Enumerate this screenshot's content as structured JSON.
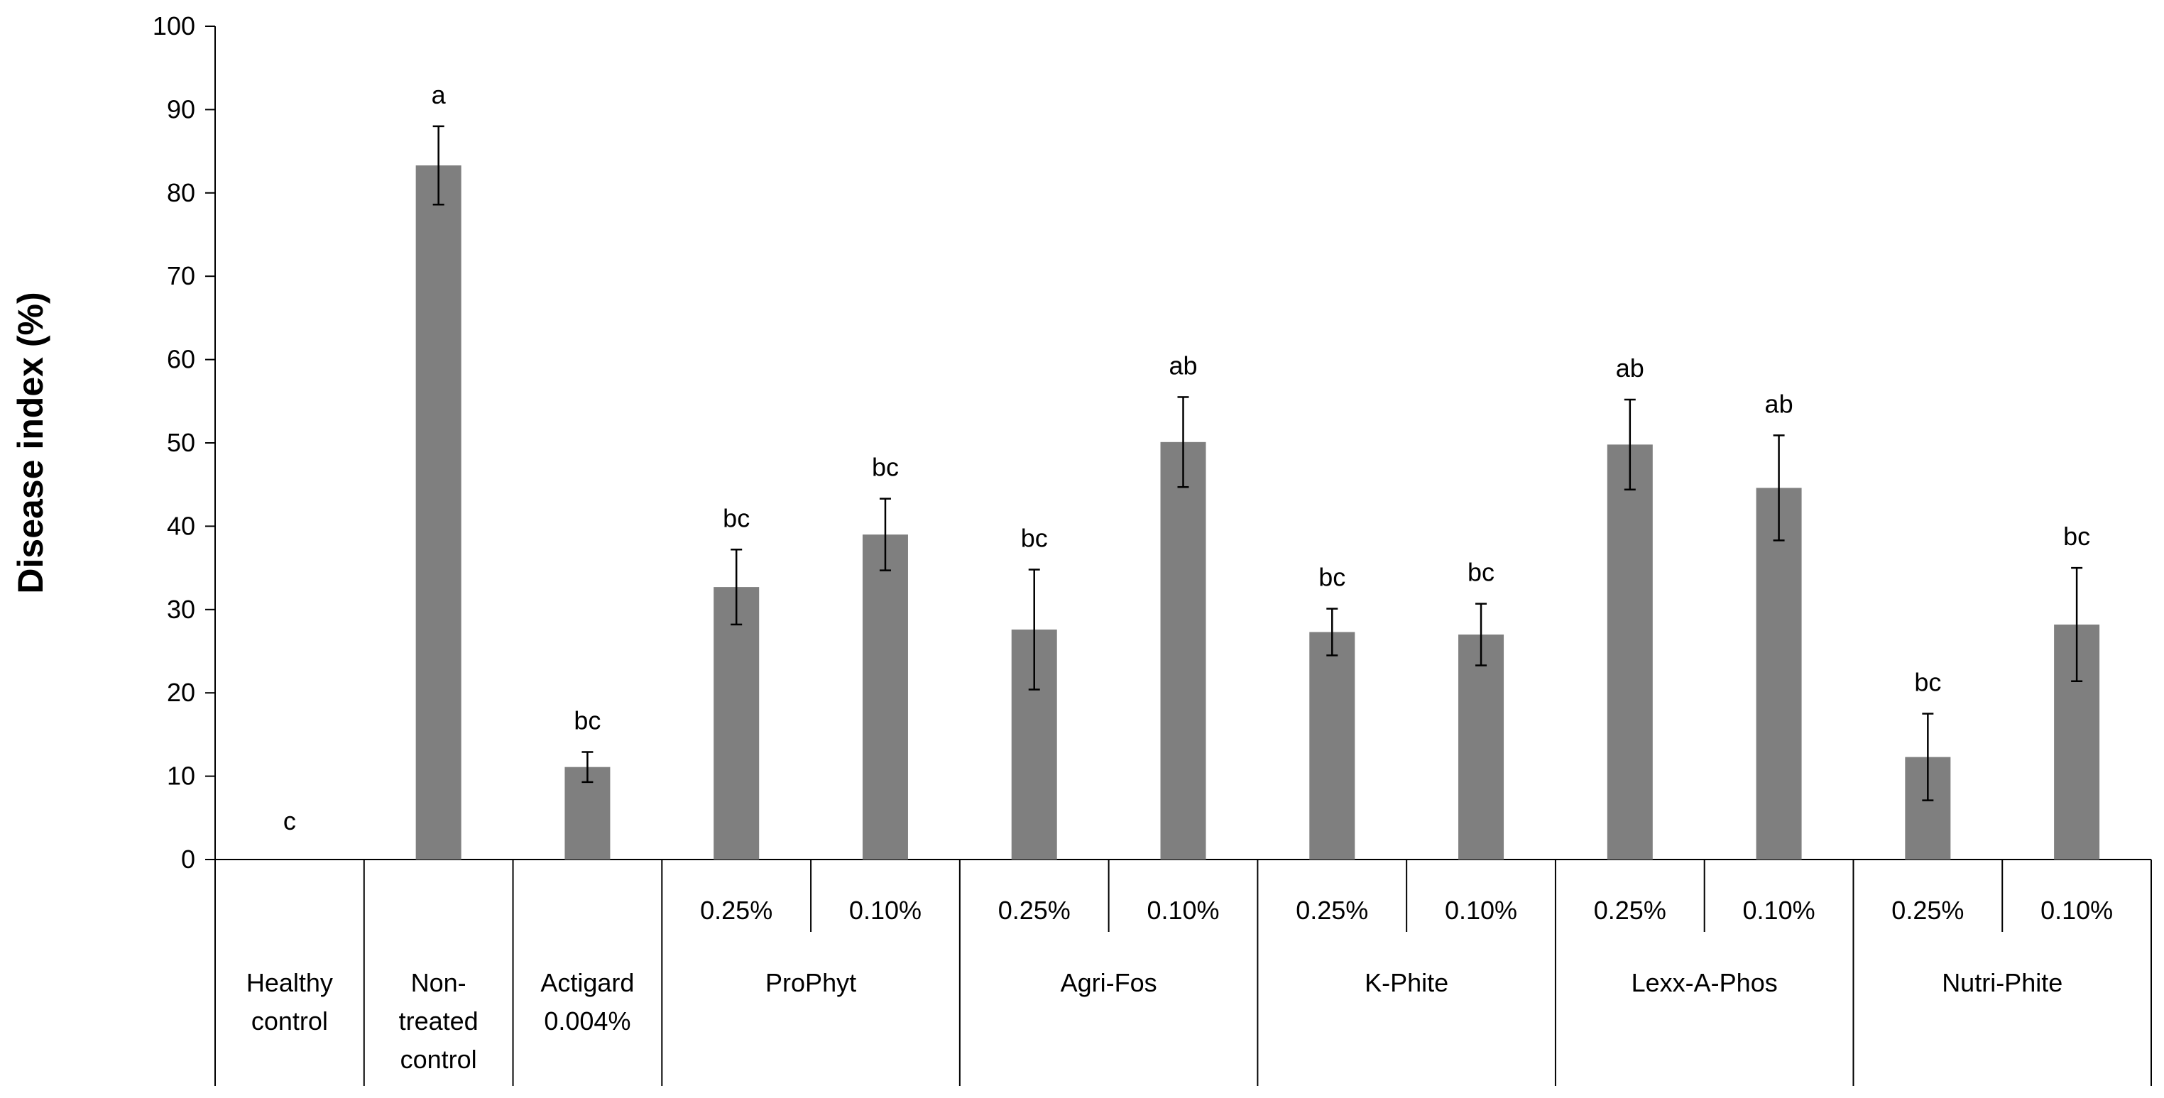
{
  "chart_data": {
    "type": "bar",
    "ylabel": "Disease index (%)",
    "ylim": [
      0,
      100
    ],
    "yticks": [
      "0",
      "10",
      "20",
      "30",
      "40",
      "50",
      "60",
      "70",
      "80",
      "90",
      "100"
    ],
    "bar_color": "#7f7f7f",
    "grid": false,
    "groups": [
      {
        "label": "Healthy control",
        "label_lines": [
          "Healthy",
          "control"
        ],
        "bars": [
          {
            "conc": "",
            "value": 0,
            "error": 0,
            "sig": "c"
          }
        ]
      },
      {
        "label": "Non-treated control",
        "label_lines": [
          "Non-",
          "treated",
          "control"
        ],
        "bars": [
          {
            "conc": "",
            "value": 83.3,
            "error": 4.7,
            "sig": "a"
          }
        ]
      },
      {
        "label": "Actigard 0.004%",
        "label_lines": [
          "Actigard",
          "0.004%"
        ],
        "bars": [
          {
            "conc": "",
            "value": 11.1,
            "error": 1.8,
            "sig": "bc"
          }
        ]
      },
      {
        "label": "ProPhyt",
        "label_lines": [
          "ProPhyt"
        ],
        "bars": [
          {
            "conc": "0.25%",
            "value": 32.7,
            "error": 4.5,
            "sig": "bc"
          },
          {
            "conc": "0.10%",
            "value": 39.0,
            "error": 4.3,
            "sig": "bc"
          }
        ]
      },
      {
        "label": "Agri-Fos",
        "label_lines": [
          "Agri-Fos"
        ],
        "bars": [
          {
            "conc": "0.25%",
            "value": 27.6,
            "error": 7.2,
            "sig": "bc"
          },
          {
            "conc": "0.10%",
            "value": 50.1,
            "error": 5.4,
            "sig": "ab"
          }
        ]
      },
      {
        "label": "K-Phite",
        "label_lines": [
          "K-Phite"
        ],
        "bars": [
          {
            "conc": "0.25%",
            "value": 27.3,
            "error": 2.8,
            "sig": "bc"
          },
          {
            "conc": "0.10%",
            "value": 27.0,
            "error": 3.7,
            "sig": "bc"
          }
        ]
      },
      {
        "label": "Lexx-A-Phos",
        "label_lines": [
          "Lexx-A-Phos"
        ],
        "bars": [
          {
            "conc": "0.25%",
            "value": 49.8,
            "error": 5.4,
            "sig": "ab"
          },
          {
            "conc": "0.10%",
            "value": 44.6,
            "error": 6.3,
            "sig": "ab"
          }
        ]
      },
      {
        "label": "Nutri-Phite",
        "label_lines": [
          "Nutri-Phite"
        ],
        "bars": [
          {
            "conc": "0.25%",
            "value": 12.3,
            "error": 5.2,
            "sig": "bc"
          },
          {
            "conc": "0.10%",
            "value": 28.2,
            "error": 6.8,
            "sig": "bc"
          }
        ]
      }
    ]
  }
}
